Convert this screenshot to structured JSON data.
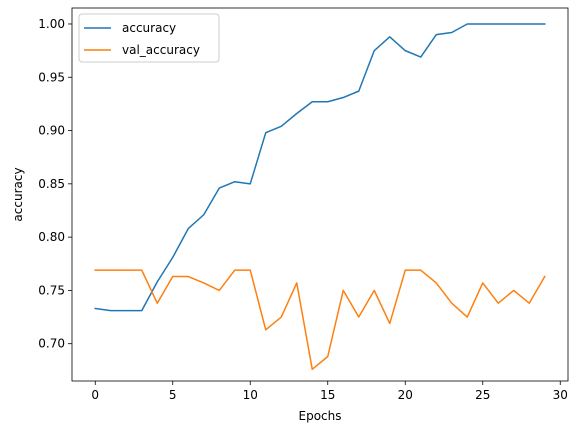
{
  "chart_data": {
    "type": "line",
    "title": "",
    "xlabel": "Epochs",
    "ylabel": "accuracy",
    "xlim": [
      -1.5,
      30.5
    ],
    "ylim": [
      0.665,
      1.015
    ],
    "xticks": [
      0,
      5,
      10,
      15,
      20,
      25,
      30
    ],
    "xtick_labels": [
      "0",
      "5",
      "10",
      "15",
      "20",
      "25",
      "30"
    ],
    "yticks": [
      0.7,
      0.75,
      0.8,
      0.85,
      0.9,
      0.95,
      1.0
    ],
    "ytick_labels": [
      "0.70",
      "0.75",
      "0.80",
      "0.85",
      "0.90",
      "0.95",
      "1.00"
    ],
    "grid": false,
    "legend_position": "top-left",
    "x": [
      0,
      1,
      2,
      3,
      4,
      5,
      6,
      7,
      8,
      9,
      10,
      11,
      12,
      13,
      14,
      15,
      16,
      17,
      18,
      19,
      20,
      21,
      22,
      23,
      24,
      25,
      26,
      27,
      28,
      29
    ],
    "series": [
      {
        "name": "accuracy",
        "color": "#1f77b4",
        "values": [
          0.733,
          0.731,
          0.731,
          0.731,
          0.758,
          0.781,
          0.808,
          0.821,
          0.846,
          0.852,
          0.85,
          0.898,
          0.904,
          0.916,
          0.927,
          0.927,
          0.931,
          0.937,
          0.975,
          0.988,
          0.975,
          0.969,
          0.99,
          0.992,
          1.0,
          1.0,
          1.0,
          1.0,
          1.0,
          1.0
        ]
      },
      {
        "name": "val_accuracy",
        "color": "#ff7f0e",
        "values": [
          0.769,
          0.769,
          0.769,
          0.769,
          0.738,
          0.763,
          0.763,
          0.757,
          0.75,
          0.769,
          0.769,
          0.713,
          0.725,
          0.757,
          0.676,
          0.688,
          0.75,
          0.725,
          0.75,
          0.719,
          0.769,
          0.769,
          0.757,
          0.738,
          0.725,
          0.757,
          0.738,
          0.75,
          0.738,
          0.763
        ]
      }
    ]
  }
}
